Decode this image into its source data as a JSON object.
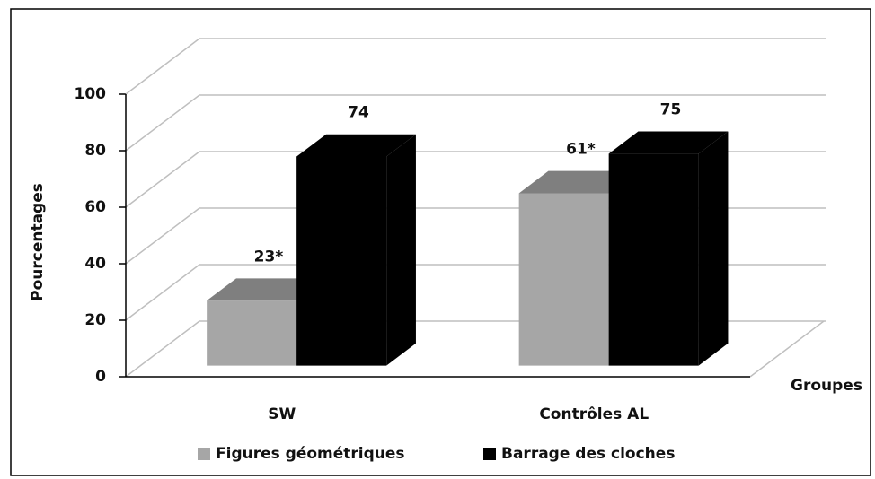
{
  "chart_data": {
    "type": "bar3d",
    "categories": [
      "SW",
      "Contrôles AL"
    ],
    "series": [
      {
        "name": "Figures géométriques",
        "color": "#a6a6a6",
        "top_color": "#7f7f7f",
        "values": [
          23,
          61
        ],
        "value_labels": [
          "23*",
          "61*"
        ]
      },
      {
        "name": "Barrage des cloches",
        "color": "#000000",
        "top_color": "#000000",
        "values": [
          74,
          75
        ]
      }
    ],
    "ylabel": "Pourcentages",
    "xlabel": "Groupes",
    "ylim": [
      0,
      100
    ],
    "yticks": [
      0,
      20,
      40,
      60,
      80,
      100
    ],
    "grid": true,
    "legend": "bottom"
  }
}
